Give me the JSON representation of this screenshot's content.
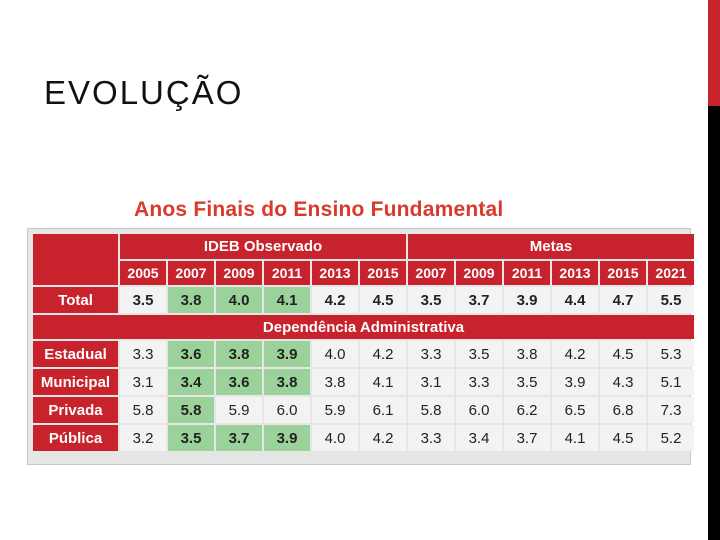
{
  "slide": {
    "title": "EVOLUÇÃO",
    "accent_red": "#c8232c",
    "highlight_green": "#9bd29c"
  },
  "table": {
    "title": "Anos Finais do Ensino Fundamental",
    "group_headers": [
      "IDEB Observado",
      "Metas"
    ],
    "years": [
      "2005",
      "2007",
      "2009",
      "2011",
      "2013",
      "2015",
      "2007",
      "2009",
      "2011",
      "2013",
      "2015",
      "2021"
    ],
    "section_label": "Dependência Administrativa",
    "rows": [
      {
        "label": "Total",
        "values": [
          "3.5",
          "3.8",
          "4.0",
          "4.1",
          "4.2",
          "4.5",
          "3.5",
          "3.7",
          "3.9",
          "4.4",
          "4.7",
          "5.5"
        ]
      },
      {
        "label": "Estadual",
        "values": [
          "3.3",
          "3.6",
          "3.8",
          "3.9",
          "4.0",
          "4.2",
          "3.3",
          "3.5",
          "3.8",
          "4.2",
          "4.5",
          "5.3"
        ]
      },
      {
        "label": "Municipal",
        "values": [
          "3.1",
          "3.4",
          "3.6",
          "3.8",
          "3.8",
          "4.1",
          "3.1",
          "3.3",
          "3.5",
          "3.9",
          "4.3",
          "5.1"
        ]
      },
      {
        "label": "Privada",
        "values": [
          "5.8",
          "5.8",
          "5.9",
          "6.0",
          "5.9",
          "6.1",
          "5.8",
          "6.0",
          "6.2",
          "6.5",
          "6.8",
          "7.3"
        ]
      },
      {
        "label": "Pública",
        "values": [
          "3.2",
          "3.5",
          "3.7",
          "3.9",
          "4.0",
          "4.2",
          "3.3",
          "3.4",
          "3.7",
          "4.1",
          "4.5",
          "5.2"
        ]
      }
    ]
  }
}
